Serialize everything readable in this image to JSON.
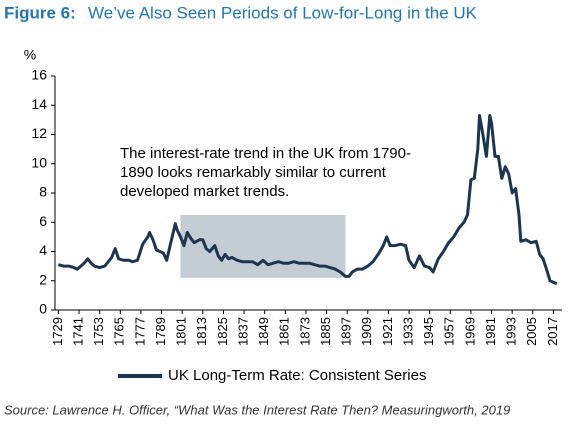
{
  "chart_data": {
    "type": "line",
    "title_label": "Figure 6:",
    "title": "We’ve Also Seen Periods of Low-for-Long in the UK",
    "ylabel": "%",
    "annotation": [
      "The interest-rate trend in the UK from 1790-",
      "1890 looks remarkably similar to current",
      "developed market trends."
    ],
    "highlight": {
      "x": [
        1800,
        1896
      ],
      "y": [
        2.2,
        6.5
      ],
      "color": "#c4ccd4"
    },
    "x": [
      1729,
      1732,
      1735,
      1738,
      1740,
      1744,
      1746,
      1748,
      1750,
      1753,
      1756,
      1758,
      1760,
      1762,
      1764,
      1767,
      1770,
      1772,
      1775,
      1778,
      1781,
      1782,
      1784,
      1786,
      1788,
      1790,
      1792,
      1794,
      1797,
      1798,
      1800,
      1802,
      1804,
      1806,
      1808,
      1811,
      1813,
      1815,
      1817,
      1820,
      1822,
      1824,
      1826,
      1828,
      1830,
      1833,
      1836,
      1839,
      1842,
      1845,
      1848,
      1851,
      1854,
      1857,
      1860,
      1863,
      1866,
      1869,
      1872,
      1875,
      1878,
      1881,
      1884,
      1887,
      1890,
      1893,
      1896,
      1898,
      1900,
      1903,
      1906,
      1909,
      1912,
      1915,
      1918,
      1920,
      1922,
      1925,
      1928,
      1931,
      1933,
      1936,
      1939,
      1942,
      1945,
      1947,
      1950,
      1953,
      1956,
      1959,
      1962,
      1965,
      1967,
      1969,
      1971,
      1973,
      1974,
      1976,
      1978,
      1980,
      1981,
      1983,
      1985,
      1987,
      1989,
      1991,
      1993,
      1995,
      1997,
      1998,
      2001,
      2004,
      2007,
      2009,
      2011,
      2013,
      2015,
      2017,
      2019
    ],
    "series": [
      {
        "name": "UK Long-Term Rate: Consistent Series",
        "color": "#1c3550",
        "values": [
          3.1,
          3.0,
          3.0,
          2.9,
          2.8,
          3.2,
          3.5,
          3.2,
          3.0,
          2.9,
          3.0,
          3.3,
          3.6,
          4.2,
          3.5,
          3.4,
          3.4,
          3.3,
          3.4,
          4.5,
          5.0,
          5.3,
          4.8,
          4.1,
          4.0,
          3.9,
          3.4,
          4.4,
          5.9,
          5.5,
          5.0,
          4.4,
          5.3,
          4.9,
          4.6,
          4.8,
          4.8,
          4.2,
          4.0,
          4.4,
          3.7,
          3.4,
          3.8,
          3.5,
          3.6,
          3.4,
          3.3,
          3.3,
          3.3,
          3.1,
          3.4,
          3.1,
          3.2,
          3.3,
          3.2,
          3.2,
          3.3,
          3.2,
          3.2,
          3.2,
          3.1,
          3.0,
          3.0,
          2.9,
          2.8,
          2.6,
          2.3,
          2.3,
          2.6,
          2.8,
          2.8,
          3.0,
          3.3,
          3.8,
          4.4,
          5.0,
          4.4,
          4.4,
          4.5,
          4.4,
          3.4,
          2.9,
          3.7,
          3.0,
          2.9,
          2.6,
          3.5,
          4.0,
          4.6,
          5.0,
          5.6,
          6.0,
          6.5,
          8.9,
          9.0,
          11.0,
          13.3,
          12.0,
          10.5,
          13.3,
          12.8,
          10.5,
          10.5,
          9.0,
          9.8,
          9.3,
          8.0,
          8.3,
          6.5,
          4.7,
          4.8,
          4.6,
          4.7,
          3.8,
          3.5,
          2.8,
          2.0,
          1.9,
          1.8
        ]
      }
    ],
    "xlim": [
      1727,
      2022
    ],
    "xticks": [
      1729,
      1741,
      1753,
      1765,
      1777,
      1789,
      1801,
      1813,
      1825,
      1837,
      1849,
      1861,
      1873,
      1885,
      1897,
      1909,
      1921,
      1933,
      1945,
      1957,
      1969,
      1981,
      1993,
      2005,
      2017
    ],
    "ylim": [
      0,
      16
    ],
    "yticks": [
      0,
      2,
      4,
      6,
      8,
      10,
      12,
      14,
      16
    ],
    "source": "Source: Lawrence H. Officer, “What Was the Interest Rate Then? Measuringworth, 2019"
  }
}
